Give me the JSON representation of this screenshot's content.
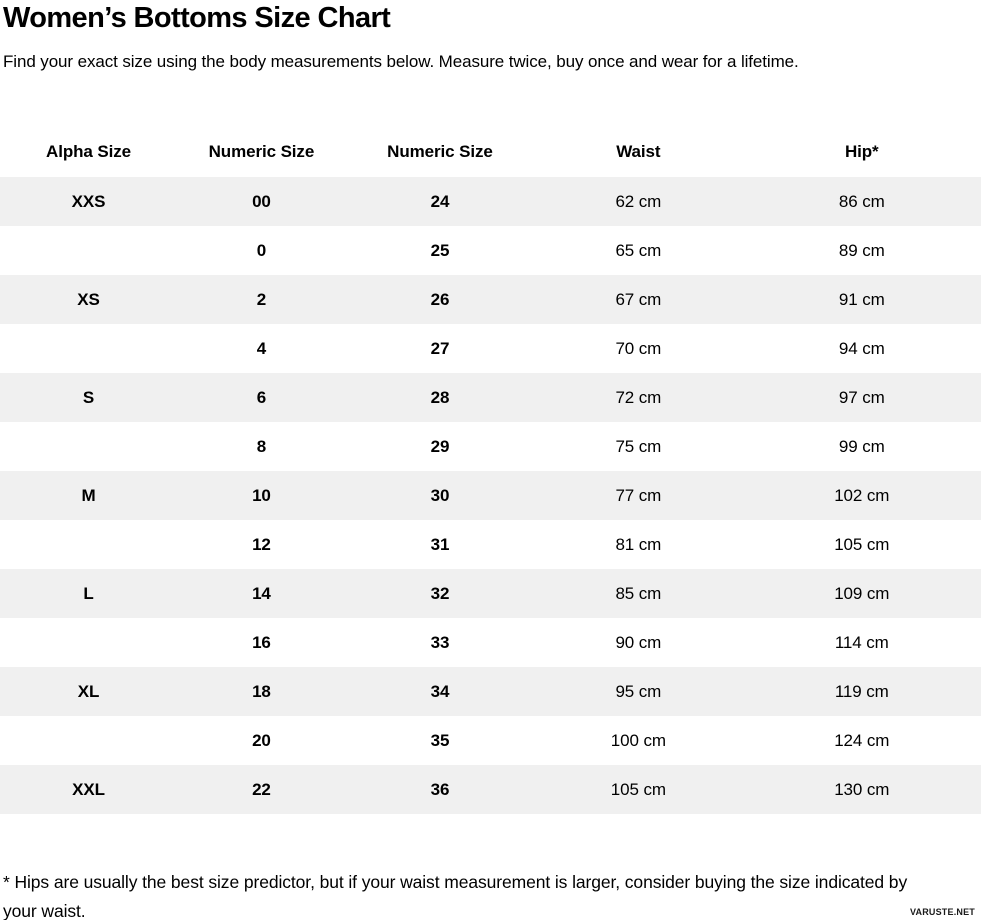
{
  "header": {
    "subtitle": "Find your exact size using the body measurements below. Measure twice, buy once and wear for a lifetime."
  },
  "chart_data": {
    "type": "table",
    "title": "Women’s Bottoms Size Chart",
    "columns": [
      "Alpha Size",
      "Numeric Size",
      "Numeric Size",
      "Waist",
      "Hip*"
    ],
    "rows": [
      [
        "XXS",
        "00",
        "24",
        "62 cm",
        "86 cm"
      ],
      [
        "",
        "0",
        "25",
        "65 cm",
        "89 cm"
      ],
      [
        "XS",
        "2",
        "26",
        "67 cm",
        "91 cm"
      ],
      [
        "",
        "4",
        "27",
        "70 cm",
        "94 cm"
      ],
      [
        "S",
        "6",
        "28",
        "72 cm",
        "97 cm"
      ],
      [
        "",
        "8",
        "29",
        "75 cm",
        "99 cm"
      ],
      [
        "M",
        "10",
        "30",
        "77 cm",
        "102 cm"
      ],
      [
        "",
        "12",
        "31",
        "81 cm",
        "105 cm"
      ],
      [
        "L",
        "14",
        "32",
        "85 cm",
        "109 cm"
      ],
      [
        "",
        "16",
        "33",
        "90 cm",
        "114 cm"
      ],
      [
        "XL",
        "18",
        "34",
        "95 cm",
        "119 cm"
      ],
      [
        "",
        "20",
        "35",
        "100 cm",
        "124 cm"
      ],
      [
        "XXL",
        "22",
        "36",
        "105 cm",
        "130 cm"
      ]
    ],
    "striped_rows": "odd rows (1st, 3rd, ...) shaded",
    "stripe_color": "#f0f0f0"
  },
  "footnote": {
    "text": "* Hips are usually the best size predictor, but if your waist measurement is larger, consider buying the size indicated by your waist."
  },
  "watermark": {
    "text": "VARUSTE.NET"
  },
  "colors": {
    "background": "#ffffff",
    "text": "#000000",
    "row_stripe": "#f0f0f0"
  }
}
